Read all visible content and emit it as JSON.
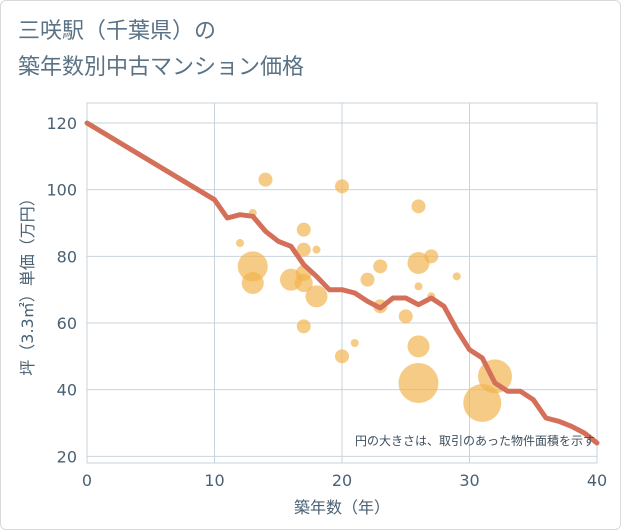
{
  "title_line1": "三咲駅（千葉県）の",
  "title_line2": "築年数別中古マンション価格",
  "chart_data": {
    "type": "scatter",
    "xlabel": "築年数（年）",
    "ylabel": "坪（3.3㎡）単価（万円）",
    "xlim": [
      0,
      40
    ],
    "ylim": [
      18,
      126
    ],
    "xticks": [
      0,
      10,
      20,
      30,
      40
    ],
    "yticks": [
      20,
      40,
      60,
      80,
      100,
      120
    ],
    "grid": true,
    "annotation": "円の大きさは、取引のあった物件面積を示す",
    "colors": {
      "bubble": "#f2b34b",
      "line": "#d4705a",
      "grid": "#c9d3dc"
    },
    "line": {
      "x": [
        0,
        10,
        11,
        12,
        13,
        14,
        15,
        16,
        17,
        18,
        19,
        20,
        21,
        22,
        23,
        24,
        25,
        26,
        27,
        28,
        29,
        30,
        31,
        32,
        33,
        34,
        35,
        36,
        37,
        38,
        39,
        40
      ],
      "y": [
        120,
        97,
        91.5,
        92.5,
        92,
        87.5,
        84.5,
        83,
        77.5,
        74,
        70,
        70,
        69,
        66.5,
        64.5,
        67.5,
        67.5,
        65.5,
        67.5,
        65,
        58,
        52,
        49.5,
        42,
        39.5,
        39.5,
        37,
        31.5,
        30.5,
        29,
        27,
        24
      ]
    },
    "points": [
      {
        "x": 12,
        "y": 84,
        "r": 4
      },
      {
        "x": 13,
        "y": 77,
        "r": 15
      },
      {
        "x": 13,
        "y": 72,
        "r": 11
      },
      {
        "x": 13,
        "y": 93,
        "r": 4
      },
      {
        "x": 14,
        "y": 103,
        "r": 7
      },
      {
        "x": 16,
        "y": 73,
        "r": 11
      },
      {
        "x": 17,
        "y": 88,
        "r": 7
      },
      {
        "x": 17,
        "y": 82,
        "r": 7
      },
      {
        "x": 17,
        "y": 75,
        "r": 8
      },
      {
        "x": 17,
        "y": 72,
        "r": 9
      },
      {
        "x": 17,
        "y": 59,
        "r": 7
      },
      {
        "x": 18,
        "y": 82,
        "r": 4
      },
      {
        "x": 18,
        "y": 68,
        "r": 11
      },
      {
        "x": 20,
        "y": 101,
        "r": 7
      },
      {
        "x": 20,
        "y": 50,
        "r": 7
      },
      {
        "x": 21,
        "y": 54,
        "r": 4
      },
      {
        "x": 22,
        "y": 73,
        "r": 7
      },
      {
        "x": 23,
        "y": 77,
        "r": 7
      },
      {
        "x": 23,
        "y": 65,
        "r": 7
      },
      {
        "x": 25,
        "y": 62,
        "r": 7
      },
      {
        "x": 26,
        "y": 95,
        "r": 7
      },
      {
        "x": 26,
        "y": 78,
        "r": 11
      },
      {
        "x": 26,
        "y": 71,
        "r": 4
      },
      {
        "x": 26,
        "y": 53,
        "r": 11
      },
      {
        "x": 26,
        "y": 42,
        "r": 20
      },
      {
        "x": 27,
        "y": 80,
        "r": 7
      },
      {
        "x": 27,
        "y": 68,
        "r": 4
      },
      {
        "x": 29,
        "y": 74,
        "r": 4
      },
      {
        "x": 31,
        "y": 36,
        "r": 19
      },
      {
        "x": 32,
        "y": 44,
        "r": 17
      }
    ]
  }
}
